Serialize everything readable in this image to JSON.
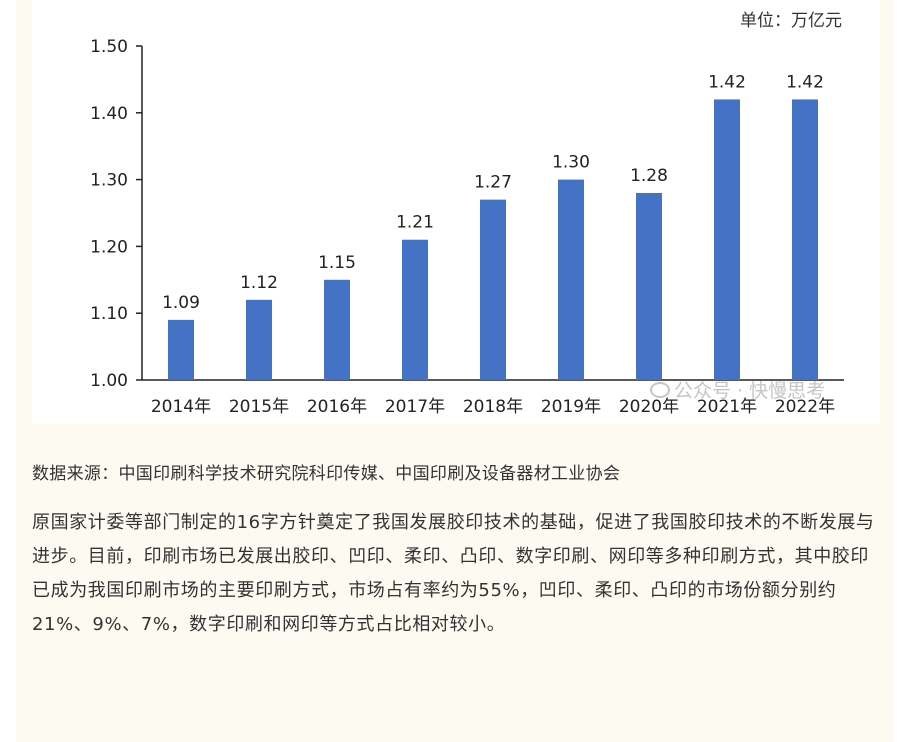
{
  "chart_data": {
    "type": "bar",
    "categories": [
      "2014年",
      "2015年",
      "2016年",
      "2017年",
      "2018年",
      "2019年",
      "2020年",
      "2021年",
      "2022年"
    ],
    "values": [
      1.09,
      1.12,
      1.15,
      1.21,
      1.27,
      1.3,
      1.28,
      1.42,
      1.42
    ],
    "data_labels": [
      "1.09",
      "1.12",
      "1.15",
      "1.21",
      "1.27",
      "1.30",
      "1.28",
      "1.42",
      "1.42"
    ],
    "unit": "单位：万亿元",
    "ylim": [
      1.0,
      1.5
    ],
    "yticks": [
      "1.00",
      "1.10",
      "1.20",
      "1.30",
      "1.40",
      "1.50"
    ],
    "ytick_values": [
      1.0,
      1.1,
      1.2,
      1.3,
      1.4,
      1.5
    ],
    "grid": false,
    "bar_color": "#4472c4"
  },
  "watermark": "公众号 · 快慢思考",
  "source": "数据来源：中国印刷科学技术研究院科印传媒、中国印刷及设备器材工业协会",
  "paragraph": "原国家计委等部门制定的16字方针奠定了我国发展胶印技术的基础，促进了我国胶印技术的不断发展与进步。目前，印刷市场已发展出胶印、凹印、柔印、凸印、数字印刷、网印等多种印刷方式，其中胶印已成为我国印刷市场的主要印刷方式，市场占有率约为55%，凹印、柔印、凸印的市场份额分别约21%、9%、7%，数字印刷和网印等方式占比相对较小。"
}
